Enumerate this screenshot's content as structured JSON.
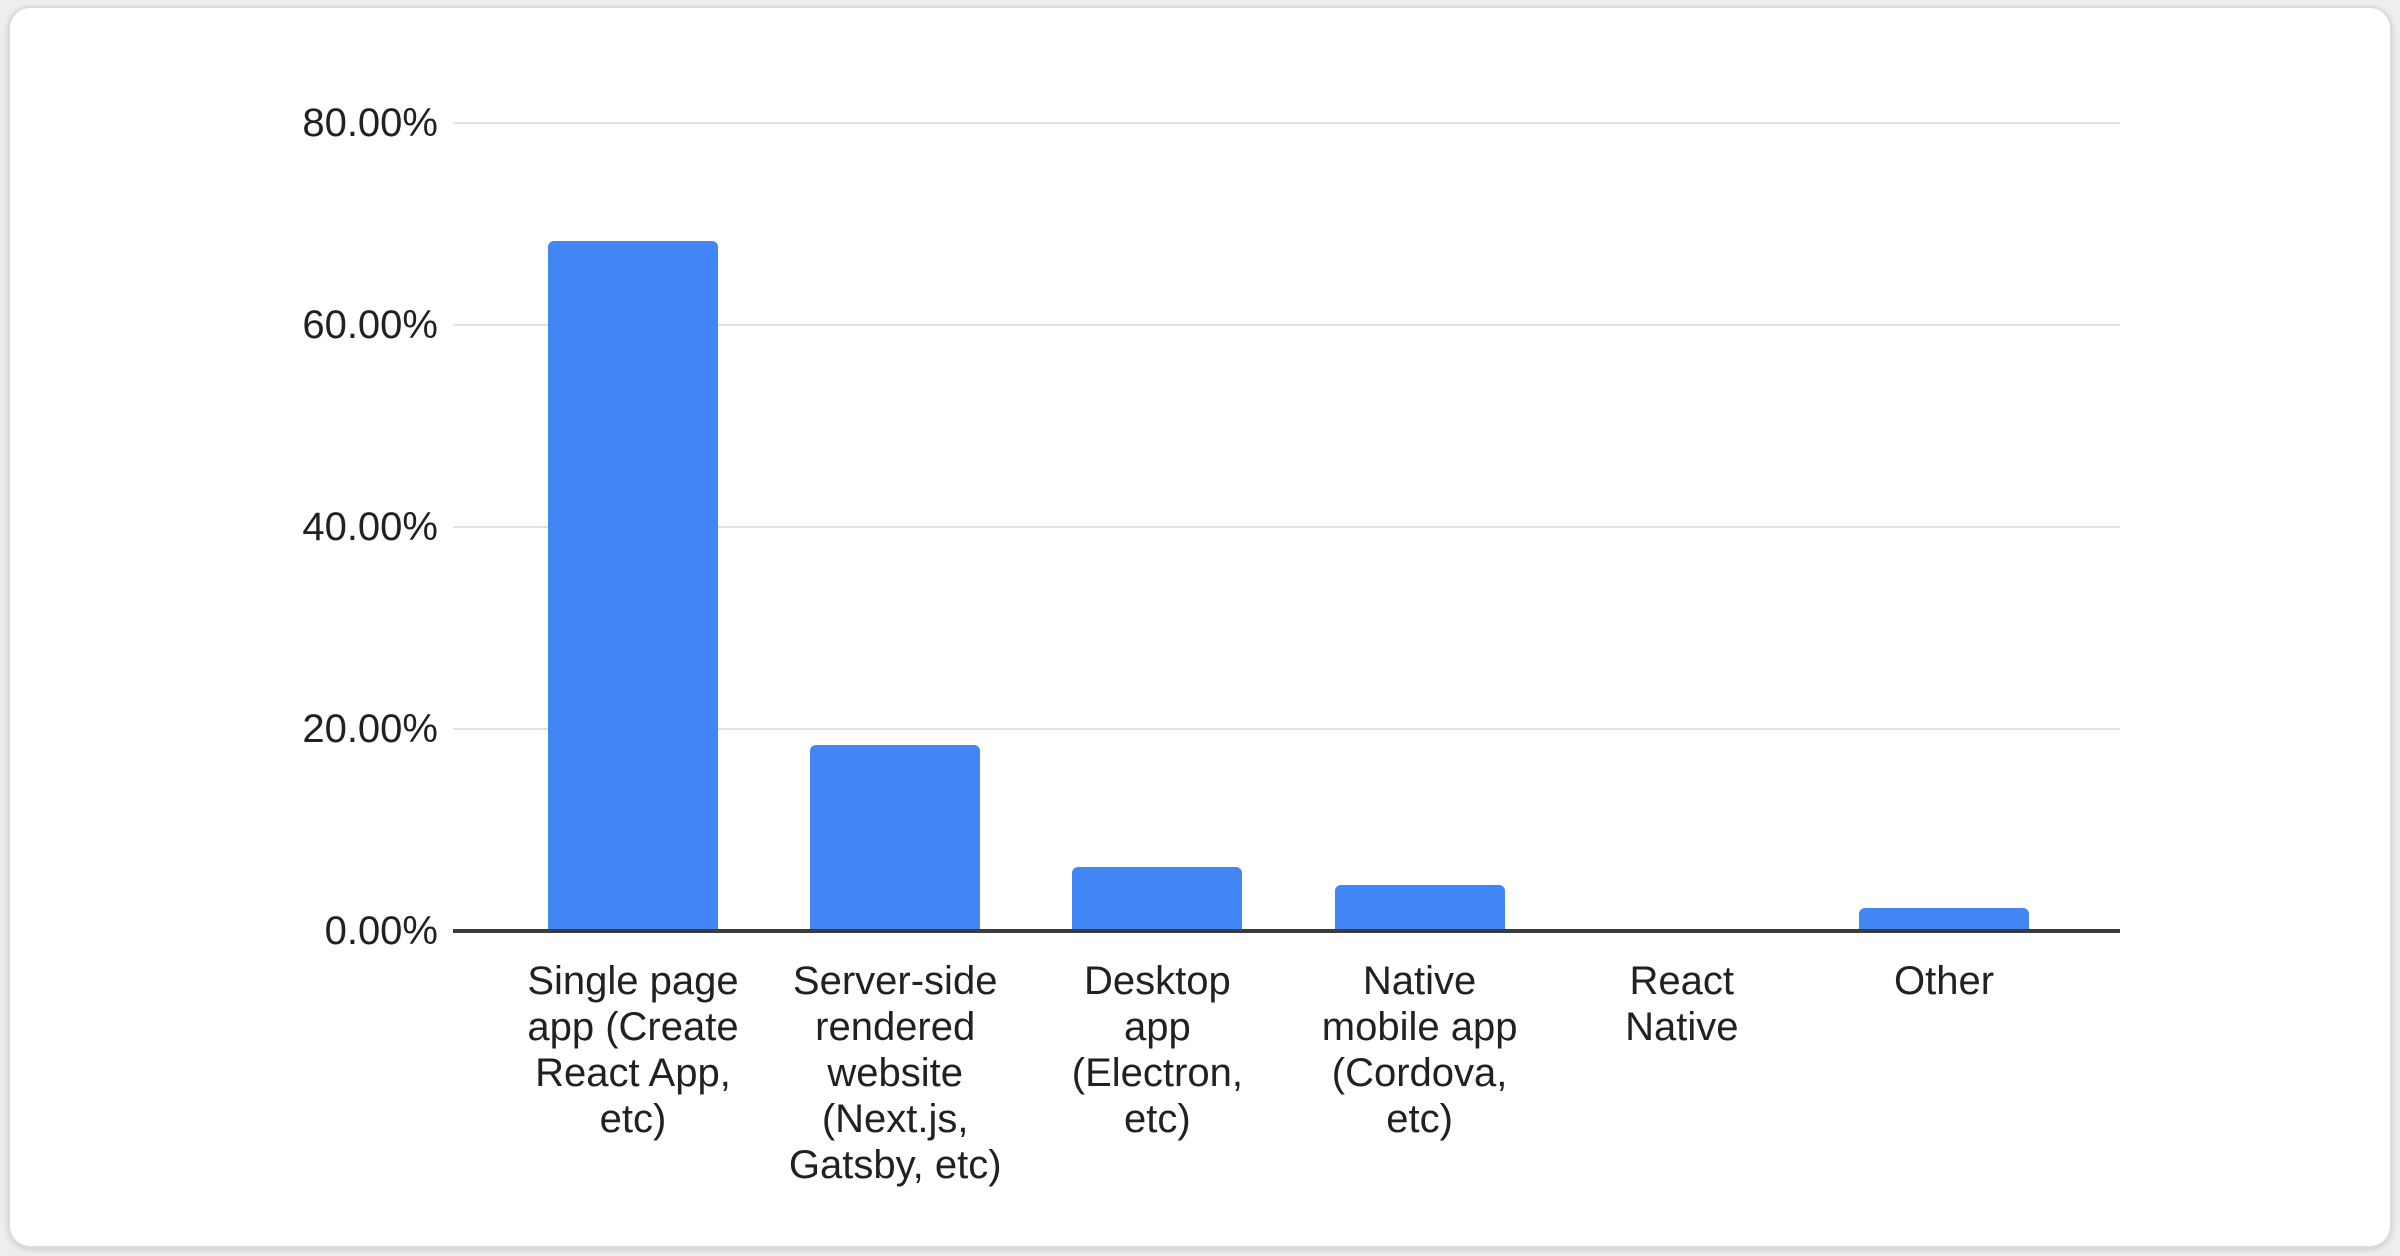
{
  "chart_data": {
    "type": "bar",
    "title": "",
    "xlabel": "",
    "ylabel": "",
    "categories": [
      "Single page app (Create React App, etc)",
      "Server-side rendered website (Next.js, Gatsby, etc)",
      "Desktop app (Electron, etc)",
      "Native mobile app (Cordova, etc)",
      "React Native",
      "Other"
    ],
    "category_lines": [
      [
        "Single page",
        "app (Create",
        "React App,",
        "etc)"
      ],
      [
        "Server-side",
        "rendered",
        "website",
        "(Next.js,",
        "Gatsby, etc)"
      ],
      [
        "Desktop",
        "app",
        "(Electron,",
        "etc)"
      ],
      [
        "Native",
        "mobile app",
        "(Cordova,",
        "etc)"
      ],
      [
        "React",
        "Native"
      ],
      [
        "Other"
      ]
    ],
    "values": [
      68.3,
      18.4,
      6.3,
      4.6,
      0,
      2.3
    ],
    "unit": "%",
    "y_ticks": [
      {
        "label": "80.00%",
        "value": 80
      },
      {
        "label": "60.00%",
        "value": 60
      },
      {
        "label": "40.00%",
        "value": 40
      },
      {
        "label": "20.00%",
        "value": 20
      },
      {
        "label": "0.00%",
        "value": 0
      }
    ],
    "ylim": [
      0,
      80
    ],
    "grid": true,
    "legend": "none"
  },
  "styles": {
    "bar_color": "#4285f4",
    "grid_color": "#e2e3e4",
    "axis_color": "#3a3c3e",
    "text_color": "#202124",
    "card_bg": "#ffffff",
    "card_border": "#d9dbde",
    "page_bg": "#eceef0"
  }
}
